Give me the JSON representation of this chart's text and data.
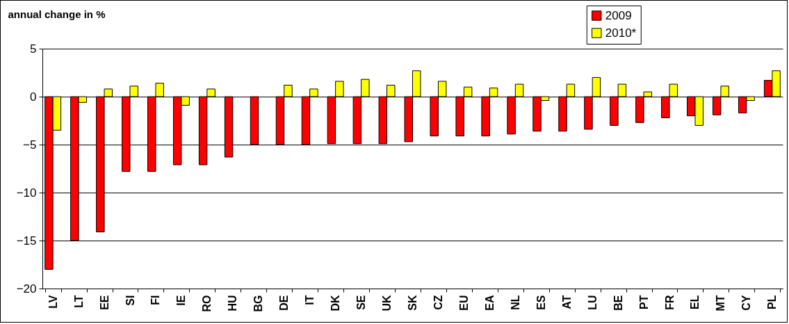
{
  "chart_data": {
    "type": "bar",
    "ylabel": "annual change in %",
    "categories": [
      "LV",
      "LT",
      "EE",
      "SI",
      "FI",
      "IE",
      "RO",
      "HU",
      "BG",
      "DE",
      "IT",
      "DK",
      "SE",
      "UK",
      "SK",
      "CZ",
      "EU",
      "EA",
      "NL",
      "ES",
      "AT",
      "LU",
      "BE",
      "PT",
      "FR",
      "EL",
      "MT",
      "CY",
      "PL"
    ],
    "series": [
      {
        "name": "2009",
        "color": "#ff0000",
        "values": [
          -18.0,
          -15.0,
          -14.1,
          -7.8,
          -7.8,
          -7.1,
          -7.1,
          -6.3,
          -5.0,
          -5.0,
          -5.0,
          -4.9,
          -4.9,
          -4.9,
          -4.7,
          -4.1,
          -4.1,
          -4.1,
          -3.9,
          -3.6,
          -3.6,
          -3.4,
          -3.0,
          -2.7,
          -2.2,
          -2.0,
          -1.9,
          -1.7,
          1.7
        ]
      },
      {
        "name": "2010*",
        "color": "#ffff00",
        "values": [
          -3.5,
          -0.6,
          0.8,
          1.1,
          1.4,
          -0.9,
          0.8,
          null,
          null,
          1.2,
          0.8,
          1.6,
          1.8,
          1.2,
          2.7,
          1.6,
          1.0,
          0.9,
          1.3,
          -0.4,
          1.3,
          2.0,
          1.3,
          0.5,
          1.3,
          -3.0,
          1.1,
          -0.4,
          2.7
        ]
      }
    ],
    "ylim": [
      -20,
      5
    ],
    "yticks": [
      -20,
      -15,
      -10,
      -5,
      0,
      5
    ],
    "grid": "y",
    "legend": "top right"
  }
}
